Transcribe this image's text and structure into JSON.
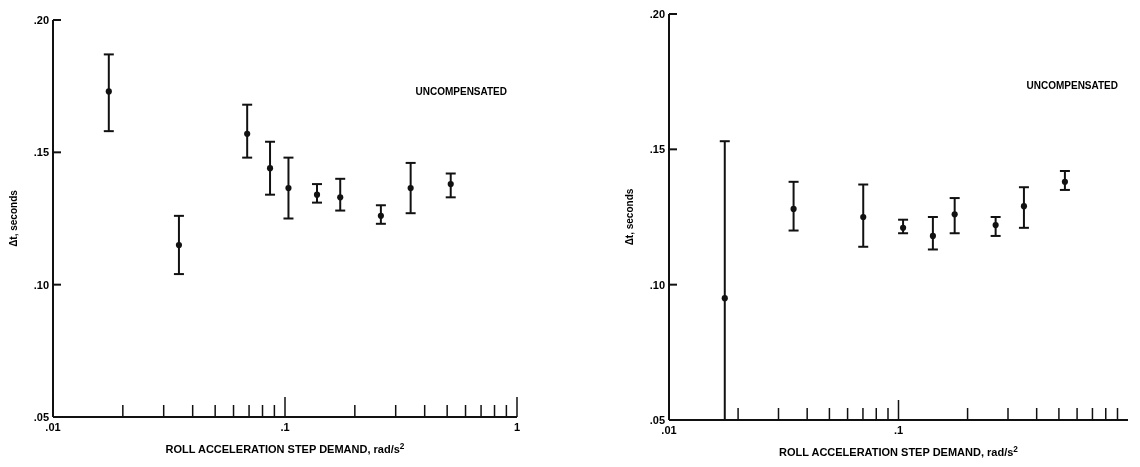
{
  "chart_data": [
    {
      "type": "scatter",
      "xlabel": "ROLL ACCELERATION STEP DEMAND, rad/s$^{2}$",
      "ylabel": "Δt, seconds",
      "annotations": [
        "UNCOMPENSATED"
      ],
      "log": "x",
      "grid": false,
      "marker": "circle",
      "xlim": [
        0.01,
        1
      ],
      "ylim": [
        0.05,
        0.2
      ],
      "xticks": [
        {
          "value": 0.01,
          "label": ".01"
        },
        {
          "value": 0.02,
          "label": null
        },
        {
          "value": 0.03,
          "label": null
        },
        {
          "value": 0.04,
          "label": null
        },
        {
          "value": 0.05,
          "label": null
        },
        {
          "value": 0.06,
          "label": null
        },
        {
          "value": 0.07,
          "label": null
        },
        {
          "value": 0.08,
          "label": null
        },
        {
          "value": 0.09,
          "label": null
        },
        {
          "value": 0.1,
          "label": ".1"
        },
        {
          "value": 0.2,
          "label": null
        },
        {
          "value": 0.3,
          "label": null
        },
        {
          "value": 0.4,
          "label": null
        },
        {
          "value": 0.5,
          "label": null
        },
        {
          "value": 0.6,
          "label": null
        },
        {
          "value": 0.7,
          "label": null
        },
        {
          "value": 0.8,
          "label": null
        },
        {
          "value": 0.9,
          "label": null
        },
        {
          "value": 1,
          "label": "1"
        }
      ],
      "yticks": [
        {
          "value": 0.05,
          "label": ".05"
        },
        {
          "value": 0.1,
          "label": ".10"
        },
        {
          "value": 0.15,
          "label": ".15"
        },
        {
          "value": 0.2,
          "label": ".20"
        }
      ],
      "series": [
        {
          "color": "#111111",
          "x": [
            0.0174,
            0.0349,
            0.0687,
            0.0862,
            0.1035,
            0.1374,
            0.173,
            0.259,
            0.348,
            0.518
          ],
          "values": [
            0.173,
            0.115,
            0.157,
            0.144,
            0.1365,
            0.134,
            0.133,
            0.126,
            0.1365,
            0.138
          ],
          "errors": [
            [
              0.158,
              0.187
            ],
            [
              0.104,
              0.126
            ],
            [
              0.148,
              0.168
            ],
            [
              0.134,
              0.154
            ],
            [
              0.125,
              0.148
            ],
            [
              0.131,
              0.138
            ],
            [
              0.128,
              0.14
            ],
            [
              0.123,
              0.13
            ],
            [
              0.127,
              0.146
            ],
            [
              0.133,
              0.142
            ]
          ]
        }
      ]
    },
    {
      "type": "scatter",
      "xlabel": "ROLL ACCELERATION STEP DEMAND, rad/s$^{2}$",
      "ylabel": "Δt, seconds",
      "annotations": [
        "UNCOMPENSATED"
      ],
      "log": "x",
      "grid": false,
      "marker": "circle",
      "xlim": [
        0.01,
        1
      ],
      "ylim": [
        0.05,
        0.2
      ],
      "xticks": [
        {
          "value": 0.01,
          "label": ".01"
        },
        {
          "value": 0.02,
          "label": null
        },
        {
          "value": 0.03,
          "label": null
        },
        {
          "value": 0.04,
          "label": null
        },
        {
          "value": 0.05,
          "label": null
        },
        {
          "value": 0.06,
          "label": null
        },
        {
          "value": 0.07,
          "label": null
        },
        {
          "value": 0.08,
          "label": null
        },
        {
          "value": 0.09,
          "label": null
        },
        {
          "value": 0.1,
          "label": ".1"
        },
        {
          "value": 0.2,
          "label": null
        },
        {
          "value": 0.3,
          "label": null
        },
        {
          "value": 0.4,
          "label": null
        },
        {
          "value": 0.5,
          "label": null
        },
        {
          "value": 0.6,
          "label": null
        },
        {
          "value": 0.7,
          "label": null
        },
        {
          "value": 0.8,
          "label": null
        },
        {
          "value": 0.9,
          "label": null
        }
      ],
      "yticks": [
        {
          "value": 0.05,
          "label": ".05"
        },
        {
          "value": 0.1,
          "label": ".10"
        },
        {
          "value": 0.15,
          "label": ".15"
        },
        {
          "value": 0.2,
          "label": ".20"
        }
      ],
      "series": [
        {
          "color": "#111111",
          "x": [
            0.0175,
            0.0349,
            0.0702,
            0.1047,
            0.1412,
            0.1757,
            0.265,
            0.352,
            0.531
          ],
          "values": [
            0.095,
            0.128,
            0.125,
            0.121,
            0.118,
            0.126,
            0.122,
            0.129,
            0.138
          ],
          "errors": [
            [
              0.05,
              0.153
            ],
            [
              0.12,
              0.138
            ],
            [
              0.114,
              0.137
            ],
            [
              0.119,
              0.124
            ],
            [
              0.113,
              0.125
            ],
            [
              0.119,
              0.132
            ],
            [
              0.118,
              0.125
            ],
            [
              0.121,
              0.136
            ],
            [
              0.135,
              0.142
            ]
          ]
        }
      ]
    }
  ]
}
